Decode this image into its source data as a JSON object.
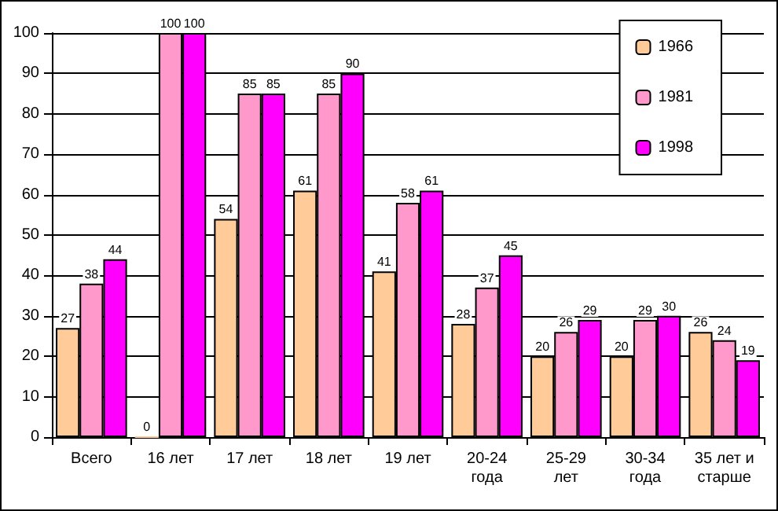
{
  "chart_data": {
    "type": "bar",
    "categories": [
      "Всего",
      "16 лет",
      "17 лет",
      "18 лет",
      "19 лет",
      "20-24\nгода",
      "25-29\nлет",
      "30-34\nгода",
      "35 лет и\nстарше"
    ],
    "series": [
      {
        "name": "1966",
        "color": "#ffcc99",
        "values": [
          27,
          0,
          54,
          61,
          41,
          28,
          20,
          20,
          26
        ]
      },
      {
        "name": "1981",
        "color": "#ff99cc",
        "values": [
          38,
          100,
          85,
          85,
          58,
          37,
          26,
          29,
          24
        ]
      },
      {
        "name": "1998",
        "color": "#ff00ff",
        "values": [
          44,
          100,
          85,
          90,
          61,
          45,
          29,
          30,
          19
        ]
      }
    ],
    "ylim": [
      0,
      100
    ],
    "yticks": [
      0,
      10,
      20,
      30,
      40,
      50,
      60,
      70,
      80,
      90,
      100
    ],
    "grid": "y",
    "legend": "top right",
    "data_labels": true
  }
}
